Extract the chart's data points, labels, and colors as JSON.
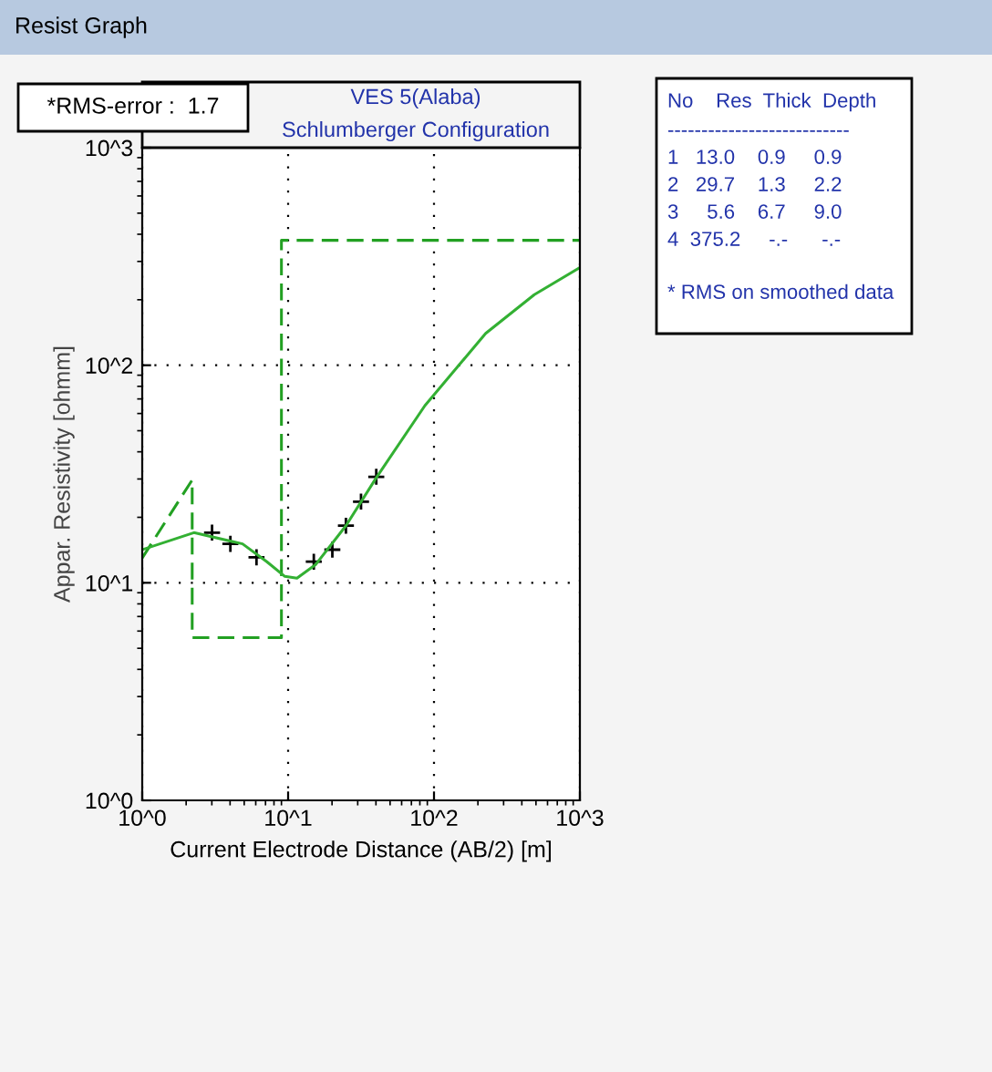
{
  "chart_data": {
    "type": "line",
    "title": "VES 5(Alaba)",
    "subtitle": "Schlumberger Configuration",
    "xlabel": "Current Electrode Distance (AB/2) [m]",
    "ylabel": "Appar. Resistivity [ohmm]",
    "log": "xy",
    "grid": true,
    "legend": false,
    "xlim": [
      1,
      1000
    ],
    "ylim": [
      1,
      1000
    ],
    "xticks": [
      {
        "value": 1,
        "label": "10^0"
      },
      {
        "value": 10,
        "label": "10^1"
      },
      {
        "value": 100,
        "label": "10^2"
      },
      {
        "value": 1000,
        "label": "10^3"
      }
    ],
    "yticks": [
      {
        "value": 1,
        "label": "10^0"
      },
      {
        "value": 10,
        "label": "10^1"
      },
      {
        "value": 100,
        "label": "10^2"
      },
      {
        "value": 1000,
        "label": "10^3"
      }
    ],
    "series": [
      {
        "color": "#22a022",
        "line_style": "dashed",
        "marker": "none",
        "x": [
          1,
          2.2,
          2.2,
          9.0,
          9.0,
          1000
        ],
        "values": [
          13.0,
          29.7,
          5.6,
          5.6,
          375.2,
          375.2
        ]
      },
      {
        "color": "#33b033",
        "line_style": "solid",
        "marker": "none",
        "x": [
          1,
          2.26,
          4.87,
          7.15,
          9.5,
          11.5,
          15.4,
          24.9,
          40.2,
          86.6,
          226,
          487,
          1000
        ],
        "values": [
          14.2,
          17.0,
          15.1,
          12.5,
          10.7,
          10.5,
          12.1,
          18.3,
          30.4,
          65.2,
          140,
          211,
          281
        ]
      },
      {
        "type": "scatter",
        "color": "#000000",
        "marker": "cross",
        "x": [
          3.01,
          4.02,
          6.07,
          15.0,
          20.1,
          24.9,
          31.6,
          40.2
        ],
        "values": [
          17.0,
          15.1,
          13.1,
          12.5,
          14.2,
          18.3,
          23.6,
          30.7
        ]
      }
    ],
    "annotations": [
      "Resist Graph",
      "*RMS-error :  1.7",
      "No    Res  Thick  Depth",
      "---------------------------",
      "1   13.0    0.9     0.9",
      "2   29.7    1.3     2.2",
      "3     5.6    6.7     9.0",
      "4  375.2     -.-      -.-",
      "* RMS on smoothed data"
    ]
  }
}
